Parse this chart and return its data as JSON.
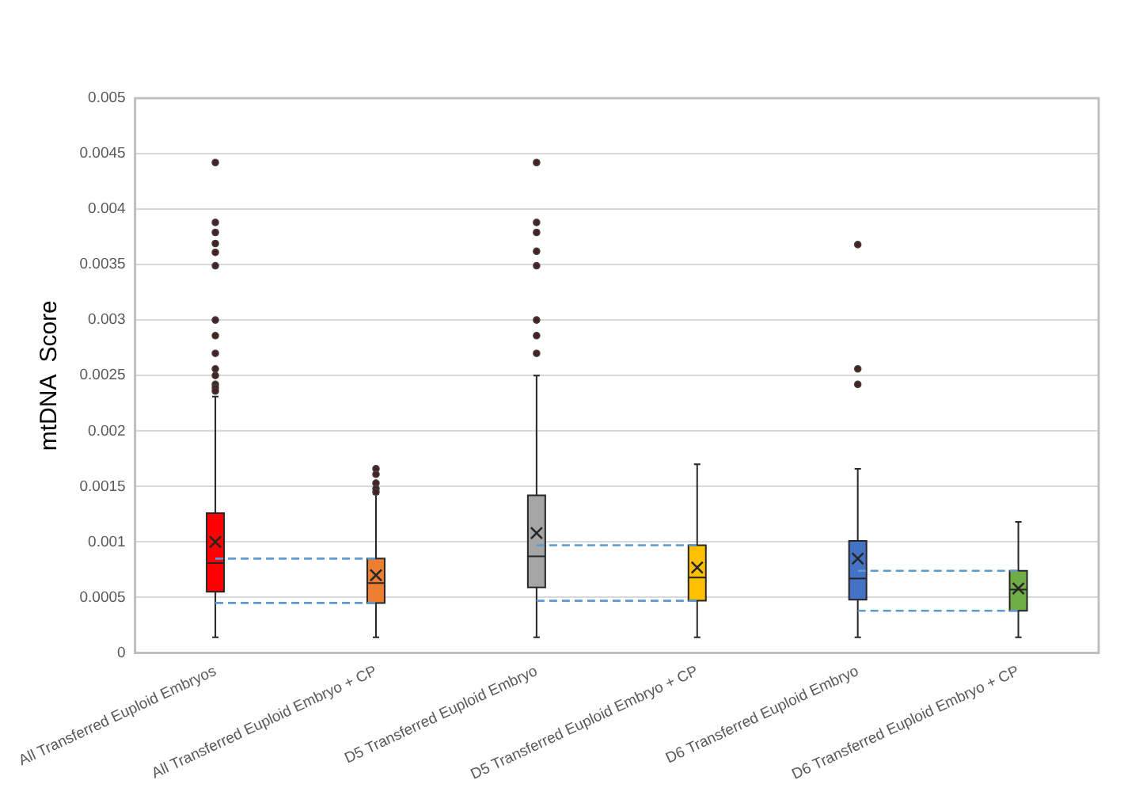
{
  "chart_data": {
    "type": "box",
    "ylabel": "mtDNA  Score",
    "categories": [
      "All Transferred Euploid Embryos",
      "All Transferred Euploid Embryo + CP",
      "D5 Transferred Euploid Embryo",
      "D5 Transferred Euploid Embryo + CP",
      "D6 Transferred Euploid Embryo",
      "D6 Transferred Euploid Embryo + CP"
    ],
    "colors": [
      "#ff0000",
      "#ed7d31",
      "#a5a5a5",
      "#ffc000",
      "#4472c4",
      "#70ad47"
    ],
    "boxes": [
      {
        "low": 0.00014,
        "q1": 0.00055,
        "median": 0.00081,
        "q3": 0.00126,
        "high": 0.00231,
        "mean": 0.001,
        "outliers": [
          0.00442,
          0.00388,
          0.00379,
          0.00369,
          0.00361,
          0.00349,
          0.003,
          0.00286,
          0.0027,
          0.00256,
          0.0025,
          0.00242,
          0.00239,
          0.00236
        ]
      },
      {
        "low": 0.00014,
        "q1": 0.00045,
        "median": 0.00063,
        "q3": 0.00085,
        "high": 0.00143,
        "mean": 0.0007,
        "outliers": [
          0.00166,
          0.00161,
          0.00153,
          0.00148,
          0.00145
        ]
      },
      {
        "low": 0.00014,
        "q1": 0.00059,
        "median": 0.00087,
        "q3": 0.00142,
        "high": 0.0025,
        "mean": 0.00108,
        "outliers": [
          0.00442,
          0.00388,
          0.00379,
          0.00362,
          0.00349,
          0.003,
          0.00286,
          0.0027
        ]
      },
      {
        "low": 0.00014,
        "q1": 0.00047,
        "median": 0.00068,
        "q3": 0.00097,
        "high": 0.0017,
        "mean": 0.00077
      },
      {
        "low": 0.00014,
        "q1": 0.00048,
        "median": 0.00067,
        "q3": 0.00101,
        "high": 0.00166,
        "mean": 0.00085,
        "outliers": [
          0.00368,
          0.00256,
          0.00242
        ]
      },
      {
        "low": 0.00014,
        "q1": 0.00038,
        "median": 0.00057,
        "q3": 0.00074,
        "high": 0.00118,
        "mean": 0.00058
      }
    ],
    "series": [
      {
        "type": "line",
        "x": [
          "All Transferred Euploid Embryos",
          "All Transferred Euploid Embryo + CP"
        ],
        "values": [
          0.00085,
          0.00085
        ],
        "color": "#5b9bd5",
        "line_style": "dashed"
      },
      {
        "type": "line",
        "x": [
          "All Transferred Euploid Embryos",
          "All Transferred Euploid Embryo + CP"
        ],
        "values": [
          0.00045,
          0.00045
        ],
        "color": "#5b9bd5",
        "line_style": "dashed"
      },
      {
        "type": "line",
        "x": [
          "D5 Transferred Euploid Embryo",
          "D5 Transferred Euploid Embryo + CP"
        ],
        "values": [
          0.00097,
          0.00097
        ],
        "color": "#5b9bd5",
        "line_style": "dashed"
      },
      {
        "type": "line",
        "x": [
          "D5 Transferred Euploid Embryo",
          "D5 Transferred Euploid Embryo + CP"
        ],
        "values": [
          0.00047,
          0.00047
        ],
        "color": "#5b9bd5",
        "line_style": "dashed"
      },
      {
        "type": "line",
        "x": [
          "D6 Transferred Euploid Embryo",
          "D6 Transferred Euploid Embryo + CP"
        ],
        "values": [
          0.00074,
          0.00074
        ],
        "color": "#5b9bd5",
        "line_style": "dashed"
      },
      {
        "type": "line",
        "x": [
          "D6 Transferred Euploid Embryo",
          "D6 Transferred Euploid Embryo + CP"
        ],
        "values": [
          0.00038,
          0.00038
        ],
        "color": "#5b9bd5",
        "line_style": "dashed"
      }
    ],
    "ylim": [
      0,
      0.005
    ],
    "yticks": [
      0,
      0.0005,
      0.001,
      0.0015,
      0.002,
      0.0025,
      0.003,
      0.0035,
      0.004,
      0.0045,
      0.005
    ],
    "grid": "y"
  }
}
